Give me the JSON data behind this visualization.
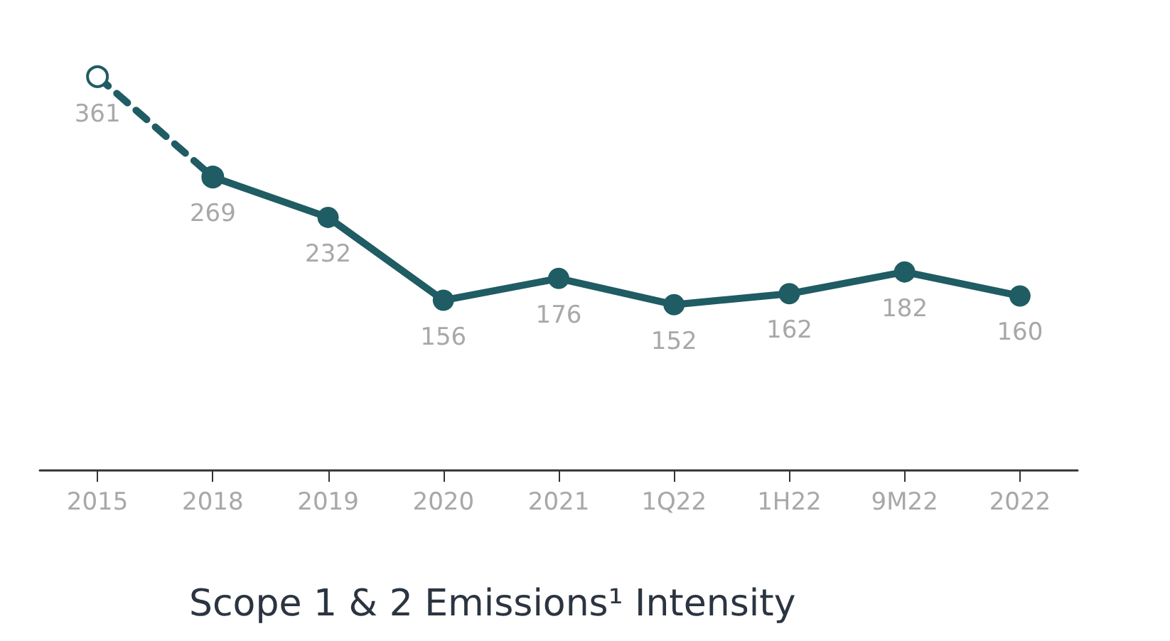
{
  "chart_data": {
    "type": "line",
    "title": "Scope 1 & 2 Emissions¹ Intensity",
    "categories": [
      "2015",
      "2018",
      "2019",
      "2020",
      "2021",
      "1Q22",
      "1H22",
      "9M22",
      "2022"
    ],
    "marker": "circle",
    "tick_labels": "x",
    "series": [
      {
        "color": "#1f5c63",
        "line_style": "dashed",
        "values": [
          361,
          269,
          null,
          null,
          null,
          null,
          null,
          null,
          null
        ],
        "value_labels": [
          "361",
          null,
          null,
          null,
          null,
          null,
          null,
          null,
          null
        ]
      },
      {
        "color": "#1f5c63",
        "line_style": "solid",
        "values": [
          null,
          269,
          232,
          156,
          176,
          152,
          162,
          182,
          160
        ],
        "value_labels": [
          null,
          "269",
          "232",
          "156",
          "176",
          "152",
          "162",
          "182",
          "160"
        ]
      }
    ]
  }
}
